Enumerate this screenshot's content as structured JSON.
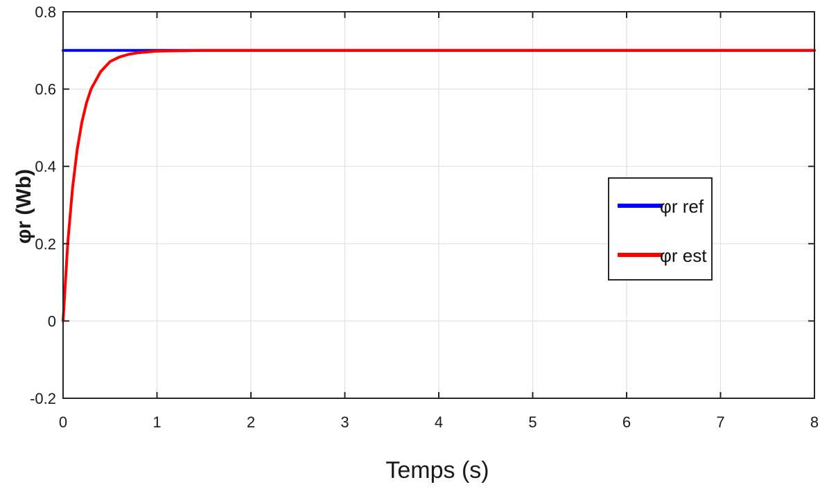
{
  "chart_data": {
    "type": "line",
    "title": "",
    "xlabel": "Temps (s)",
    "ylabel": "φr (Wb)",
    "xlim": [
      0,
      8
    ],
    "ylim": [
      -0.2,
      0.8
    ],
    "xticks": [
      0,
      1,
      2,
      3,
      4,
      5,
      6,
      7,
      8
    ],
    "xtick_labels": [
      "0",
      "1",
      "2",
      "3",
      "4",
      "5",
      "6",
      "7",
      "8"
    ],
    "yticks": [
      -0.2,
      0,
      0.2,
      0.4,
      0.6,
      0.8
    ],
    "ytick_labels": [
      "-0.2",
      "0",
      "0.2",
      "0.4",
      "0.6",
      "0.8"
    ],
    "grid": true,
    "legend_position": "right",
    "series": [
      {
        "name": "φr ref",
        "color": "#0000ff",
        "x": [
          0,
          8
        ],
        "y": [
          0.7,
          0.7
        ]
      },
      {
        "name": "φr est",
        "color": "#ff0000",
        "x": [
          0,
          0.05,
          0.1,
          0.15,
          0.2,
          0.25,
          0.3,
          0.4,
          0.5,
          0.6,
          0.7,
          0.8,
          1.0,
          1.2,
          1.5,
          2,
          3,
          4,
          5,
          6,
          7,
          8
        ],
        "y": [
          0,
          0.202,
          0.342,
          0.443,
          0.514,
          0.565,
          0.601,
          0.645,
          0.671,
          0.683,
          0.69,
          0.694,
          0.698,
          0.699,
          0.7,
          0.7,
          0.7,
          0.7,
          0.7,
          0.7,
          0.7,
          0.7
        ]
      }
    ]
  }
}
